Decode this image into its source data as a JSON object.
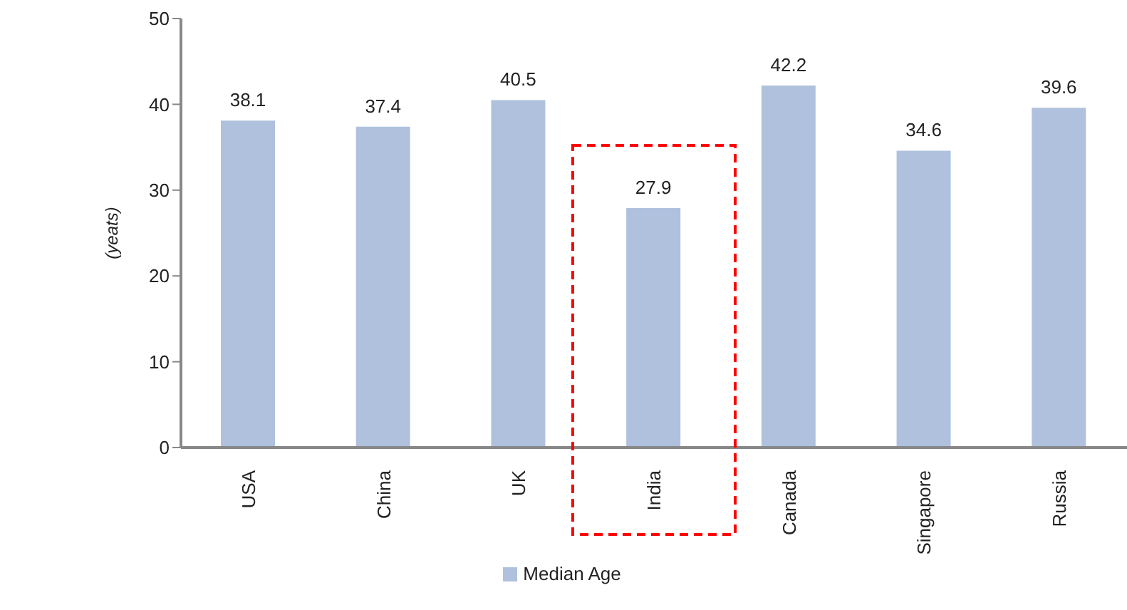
{
  "chart_data": {
    "type": "bar",
    "ylabel": "(yeats)",
    "categories": [
      "USA",
      "China",
      "UK",
      "India",
      "Canada",
      "Singapore",
      "Russia"
    ],
    "series": [
      {
        "name": "Median Age",
        "color": "#b0c1de",
        "values": [
          38.1,
          37.4,
          40.5,
          27.9,
          42.2,
          34.6,
          39.6
        ]
      }
    ],
    "ylim": [
      0,
      50
    ],
    "yticks": [
      0,
      10,
      20,
      30,
      40,
      50
    ],
    "grid": false,
    "legend": "bottom",
    "data_labels": true
  }
}
